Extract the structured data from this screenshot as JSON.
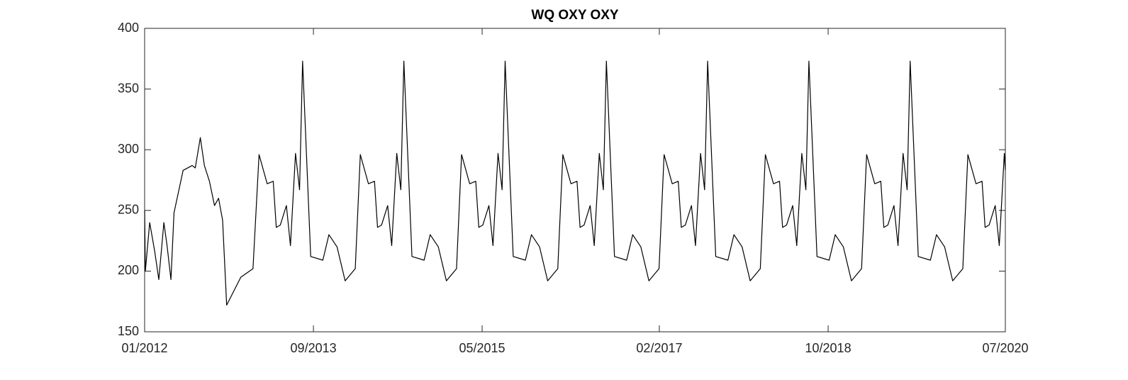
{
  "chart_data": {
    "type": "line",
    "title": "WQ OXY OXY",
    "color": "#000000",
    "x": [
      2012.0,
      2012.007,
      2012.05,
      2012.1,
      2012.14,
      2012.19,
      2012.22,
      2012.26,
      2012.29,
      2012.38,
      2012.47,
      2012.5,
      2012.55,
      2012.59,
      2012.64,
      2012.69,
      2012.73,
      2012.77,
      2012.81,
      2012.95,
      2013.07,
      2013.13,
      2013.21,
      2013.27,
      2013.3,
      2013.34,
      2013.4,
      2013.44,
      2013.49,
      2013.53,
      2013.56,
      2013.64,
      2013.76,
      2013.82,
      2013.9,
      2013.98,
      2014.08,
      2014.13,
      2014.21,
      2014.27,
      2014.3,
      2014.34,
      2014.4,
      2014.44,
      2014.49,
      2014.53,
      2014.56,
      2014.64,
      2014.76,
      2014.82,
      2014.9,
      2014.98,
      2015.08,
      2015.13,
      2015.21,
      2015.27,
      2015.3,
      2015.34,
      2015.4,
      2015.44,
      2015.49,
      2015.53,
      2015.56,
      2015.64,
      2015.76,
      2015.82,
      2015.9,
      2015.98,
      2016.08,
      2016.13,
      2016.21,
      2016.27,
      2016.3,
      2016.34,
      2016.4,
      2016.44,
      2016.49,
      2016.53,
      2016.56,
      2016.64,
      2016.76,
      2016.82,
      2016.9,
      2016.98,
      2017.08,
      2017.13,
      2017.21,
      2017.27,
      2017.3,
      2017.34,
      2017.4,
      2017.44,
      2017.49,
      2017.53,
      2017.56,
      2017.64,
      2017.76,
      2017.82,
      2017.9,
      2017.98,
      2018.08,
      2018.13,
      2018.21,
      2018.27,
      2018.3,
      2018.34,
      2018.4,
      2018.44,
      2018.49,
      2018.53,
      2018.56,
      2018.64,
      2018.76,
      2018.82,
      2018.9,
      2018.98,
      2019.08,
      2019.13,
      2019.21,
      2019.27,
      2019.3,
      2019.34,
      2019.4,
      2019.44,
      2019.49,
      2019.53,
      2019.56,
      2019.64,
      2019.76,
      2019.82,
      2019.9,
      2019.98,
      2020.08,
      2020.13,
      2020.21,
      2020.27,
      2020.3,
      2020.34,
      2020.4,
      2020.44,
      2020.49,
      2020.5
    ],
    "values": [
      250,
      200,
      240,
      216,
      193,
      240,
      222,
      193,
      248,
      283,
      287,
      285,
      310,
      287,
      274,
      254,
      260,
      242,
      172,
      195,
      202,
      296,
      272,
      274,
      236,
      238,
      254,
      221,
      297,
      267,
      373,
      212,
      209,
      230,
      220,
      192,
      202,
      296,
      272,
      274,
      236,
      238,
      254,
      221,
      297,
      267,
      373,
      212,
      209,
      230,
      220,
      192,
      202,
      296,
      272,
      274,
      236,
      238,
      254,
      221,
      297,
      267,
      373,
      212,
      209,
      230,
      220,
      192,
      202,
      296,
      272,
      274,
      236,
      238,
      254,
      221,
      297,
      267,
      373,
      212,
      209,
      230,
      220,
      192,
      202,
      296,
      272,
      274,
      236,
      238,
      254,
      221,
      297,
      267,
      373,
      212,
      209,
      230,
      220,
      192,
      202,
      296,
      272,
      274,
      236,
      238,
      254,
      221,
      297,
      267,
      373,
      212,
      209,
      230,
      220,
      192,
      202,
      296,
      272,
      274,
      236,
      238,
      254,
      221,
      297,
      267,
      373,
      212,
      209,
      230,
      220,
      192,
      202,
      296,
      272,
      274,
      236,
      238,
      254,
      221,
      297,
      283
    ],
    "xlim": [
      2012.0,
      2020.5
    ],
    "xticks": [
      {
        "value": 2012.0,
        "label": "01/2012"
      },
      {
        "value": 2013.667,
        "label": "09/2013"
      },
      {
        "value": 2015.333,
        "label": "05/2015"
      },
      {
        "value": 2017.083,
        "label": "02/2017"
      },
      {
        "value": 2018.75,
        "label": "10/2018"
      },
      {
        "value": 2020.5,
        "label": "07/2020"
      }
    ],
    "ylim": [
      150,
      400
    ],
    "yticks": [
      150,
      200,
      250,
      300,
      350,
      400
    ],
    "grid": false
  }
}
